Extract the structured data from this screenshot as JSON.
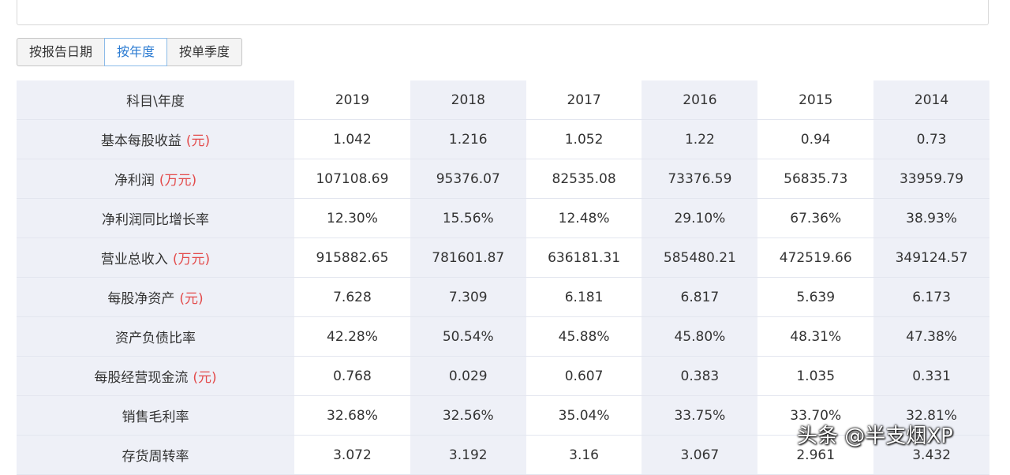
{
  "tabs": [
    {
      "label": "按报告日期",
      "active": false
    },
    {
      "label": "按年度",
      "active": true
    },
    {
      "label": "按单季度",
      "active": false
    }
  ],
  "table": {
    "header_label": "科目\\年度",
    "years": [
      "2019",
      "2018",
      "2017",
      "2016",
      "2015",
      "2014"
    ],
    "rows": [
      {
        "label": "基本每股收益",
        "unit": "(元)",
        "values": [
          "1.042",
          "1.216",
          "1.052",
          "1.22",
          "0.94",
          "0.73"
        ]
      },
      {
        "label": "净利润",
        "unit": "(万元)",
        "values": [
          "107108.69",
          "95376.07",
          "82535.08",
          "73376.59",
          "56835.73",
          "33959.79"
        ]
      },
      {
        "label": "净利润同比增长率",
        "unit": "",
        "values": [
          "12.30%",
          "15.56%",
          "12.48%",
          "29.10%",
          "67.36%",
          "38.93%"
        ]
      },
      {
        "label": "营业总收入",
        "unit": "(万元)",
        "values": [
          "915882.65",
          "781601.87",
          "636181.31",
          "585480.21",
          "472519.66",
          "349124.57"
        ]
      },
      {
        "label": "每股净资产",
        "unit": "(元)",
        "values": [
          "7.628",
          "7.309",
          "6.181",
          "6.817",
          "5.639",
          "6.173"
        ]
      },
      {
        "label": "资产负债比率",
        "unit": "",
        "values": [
          "42.28%",
          "50.54%",
          "45.88%",
          "45.80%",
          "48.31%",
          "47.38%"
        ]
      },
      {
        "label": "每股经营现金流",
        "unit": "(元)",
        "values": [
          "0.768",
          "0.029",
          "0.607",
          "0.383",
          "1.035",
          "0.331"
        ]
      },
      {
        "label": "销售毛利率",
        "unit": "",
        "values": [
          "32.68%",
          "32.56%",
          "35.04%",
          "33.75%",
          "33.70%",
          "32.81%"
        ]
      },
      {
        "label": "存货周转率",
        "unit": "",
        "values": [
          "3.072",
          "3.192",
          "3.16",
          "3.067",
          "2.961",
          "3.432"
        ]
      }
    ]
  },
  "watermark": "头条 @半支烟XP",
  "colors": {
    "accent": "#2b7bd2",
    "unit_red": "#e34b4b",
    "band": "#eef0f7"
  }
}
